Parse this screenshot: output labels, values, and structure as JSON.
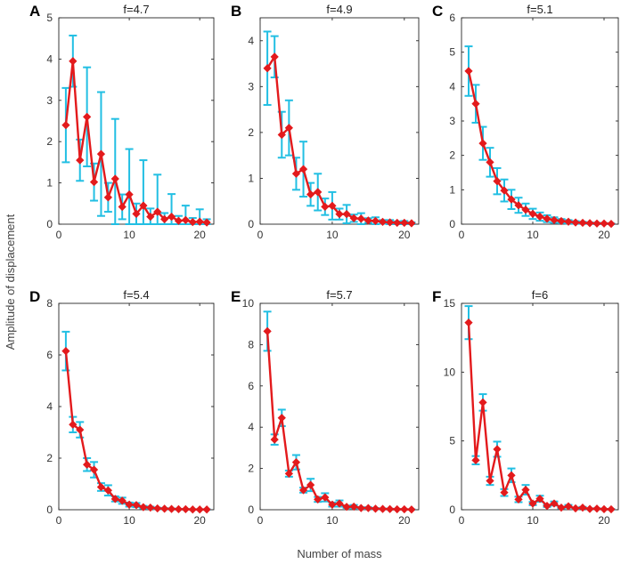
{
  "figure": {
    "xlabel": "Number of mass",
    "ylabel": "Amplitude of displacement"
  },
  "colors": {
    "line": "#e31a1c",
    "marker": "#e31a1c",
    "errorbar": "#22bfe3",
    "axis": "#262626"
  },
  "chart_data": [
    {
      "type": "line",
      "panel": "A",
      "title": "f=4.7",
      "x": [
        1,
        2,
        3,
        4,
        5,
        6,
        7,
        8,
        9,
        10,
        11,
        12,
        13,
        14,
        15,
        16,
        17,
        18,
        19,
        20,
        21
      ],
      "values": [
        2.4,
        3.95,
        1.55,
        2.6,
        1.02,
        1.7,
        0.65,
        1.1,
        0.42,
        0.72,
        0.25,
        0.45,
        0.18,
        0.3,
        0.12,
        0.18,
        0.08,
        0.1,
        0.05,
        0.06,
        0.04
      ],
      "error": [
        0.9,
        0.62,
        0.5,
        1.2,
        0.45,
        1.5,
        0.35,
        1.45,
        0.3,
        1.1,
        0.25,
        1.1,
        0.2,
        0.9,
        0.15,
        0.55,
        0.12,
        0.35,
        0.1,
        0.3,
        0.08
      ],
      "xlim": [
        0,
        22
      ],
      "ylim": [
        0,
        5
      ],
      "xticks": [
        0,
        10,
        20
      ],
      "yticks": [
        0,
        1,
        2,
        3,
        4,
        5
      ]
    },
    {
      "type": "line",
      "panel": "B",
      "title": "f=4.9",
      "x": [
        1,
        2,
        3,
        4,
        5,
        6,
        7,
        8,
        9,
        10,
        11,
        12,
        13,
        14,
        15,
        16,
        17,
        18,
        19,
        20,
        21
      ],
      "values": [
        3.4,
        3.65,
        1.95,
        2.1,
        1.1,
        1.2,
        0.65,
        0.7,
        0.38,
        0.4,
        0.22,
        0.22,
        0.13,
        0.12,
        0.08,
        0.07,
        0.05,
        0.04,
        0.03,
        0.03,
        0.02
      ],
      "error": [
        0.8,
        0.45,
        0.5,
        0.6,
        0.35,
        0.6,
        0.25,
        0.4,
        0.18,
        0.3,
        0.12,
        0.2,
        0.08,
        0.12,
        0.05,
        0.08,
        0.04,
        0.05,
        0.03,
        0.04,
        0.02
      ],
      "xlim": [
        0,
        22
      ],
      "ylim": [
        0,
        4.5
      ],
      "xticks": [
        0,
        10,
        20
      ],
      "yticks": [
        0,
        1,
        2,
        3,
        4
      ]
    },
    {
      "type": "line",
      "panel": "C",
      "title": "f=5.1",
      "x": [
        1,
        2,
        3,
        4,
        5,
        6,
        7,
        8,
        9,
        10,
        11,
        12,
        13,
        14,
        15,
        16,
        17,
        18,
        19,
        20,
        21
      ],
      "values": [
        4.45,
        3.5,
        2.35,
        1.8,
        1.25,
        0.98,
        0.72,
        0.55,
        0.42,
        0.3,
        0.22,
        0.16,
        0.12,
        0.09,
        0.07,
        0.05,
        0.04,
        0.03,
        0.02,
        0.02,
        0.01
      ],
      "error": [
        0.72,
        0.55,
        0.48,
        0.42,
        0.38,
        0.32,
        0.28,
        0.22,
        0.18,
        0.15,
        0.12,
        0.1,
        0.08,
        0.06,
        0.05,
        0.04,
        0.03,
        0.02,
        0.02,
        0.01,
        0.01
      ],
      "xlim": [
        0,
        22
      ],
      "ylim": [
        0,
        6
      ],
      "xticks": [
        0,
        10,
        20
      ],
      "yticks": [
        0,
        1,
        2,
        3,
        4,
        5,
        6
      ]
    },
    {
      "type": "line",
      "panel": "D",
      "title": "f=5.4",
      "x": [
        1,
        2,
        3,
        4,
        5,
        6,
        7,
        8,
        9,
        10,
        11,
        12,
        13,
        14,
        15,
        16,
        17,
        18,
        19,
        20,
        21
      ],
      "values": [
        6.15,
        3.3,
        3.1,
        1.75,
        1.55,
        0.88,
        0.75,
        0.42,
        0.35,
        0.2,
        0.18,
        0.1,
        0.08,
        0.05,
        0.04,
        0.03,
        0.02,
        0.02,
        0.01,
        0.01,
        0.01
      ],
      "error": [
        0.75,
        0.3,
        0.3,
        0.25,
        0.3,
        0.15,
        0.2,
        0.1,
        0.12,
        0.08,
        0.08,
        0.05,
        0.04,
        0.03,
        0.02,
        0.02,
        0.01,
        0.01,
        0.01,
        0.01,
        0.01
      ],
      "xlim": [
        0,
        22
      ],
      "ylim": [
        0,
        8
      ],
      "xticks": [
        0,
        10,
        20
      ],
      "yticks": [
        0,
        2,
        4,
        6,
        8
      ]
    },
    {
      "type": "line",
      "panel": "E",
      "title": "f=5.7",
      "x": [
        1,
        2,
        3,
        4,
        5,
        6,
        7,
        8,
        9,
        10,
        11,
        12,
        13,
        14,
        15,
        16,
        17,
        18,
        19,
        20,
        21
      ],
      "values": [
        8.65,
        3.4,
        4.45,
        1.75,
        2.3,
        0.95,
        1.2,
        0.5,
        0.6,
        0.25,
        0.3,
        0.14,
        0.15,
        0.08,
        0.08,
        0.05,
        0.04,
        0.03,
        0.02,
        0.02,
        0.01
      ],
      "error": [
        0.95,
        0.25,
        0.4,
        0.15,
        0.35,
        0.12,
        0.3,
        0.12,
        0.2,
        0.1,
        0.15,
        0.06,
        0.08,
        0.04,
        0.04,
        0.03,
        0.02,
        0.02,
        0.01,
        0.01,
        0.01
      ],
      "xlim": [
        0,
        22
      ],
      "ylim": [
        0,
        10
      ],
      "xticks": [
        0,
        10,
        20
      ],
      "yticks": [
        0,
        2,
        4,
        6,
        8,
        10
      ]
    },
    {
      "type": "line",
      "panel": "F",
      "title": "f=6",
      "x": [
        1,
        2,
        3,
        4,
        5,
        6,
        7,
        8,
        9,
        10,
        11,
        12,
        13,
        14,
        15,
        16,
        17,
        18,
        19,
        20,
        21
      ],
      "values": [
        13.6,
        3.6,
        7.8,
        2.1,
        4.4,
        1.25,
        2.5,
        0.75,
        1.45,
        0.45,
        0.8,
        0.28,
        0.45,
        0.15,
        0.25,
        0.1,
        0.15,
        0.06,
        0.08,
        0.04,
        0.03
      ],
      "error": [
        1.2,
        0.3,
        0.6,
        0.3,
        0.55,
        0.25,
        0.5,
        0.2,
        0.35,
        0.12,
        0.22,
        0.08,
        0.15,
        0.06,
        0.1,
        0.05,
        0.06,
        0.03,
        0.03,
        0.02,
        0.02
      ],
      "xlim": [
        0,
        22
      ],
      "ylim": [
        0,
        15
      ],
      "xticks": [
        0,
        10,
        20
      ],
      "yticks": [
        0,
        5,
        10,
        15
      ]
    }
  ]
}
